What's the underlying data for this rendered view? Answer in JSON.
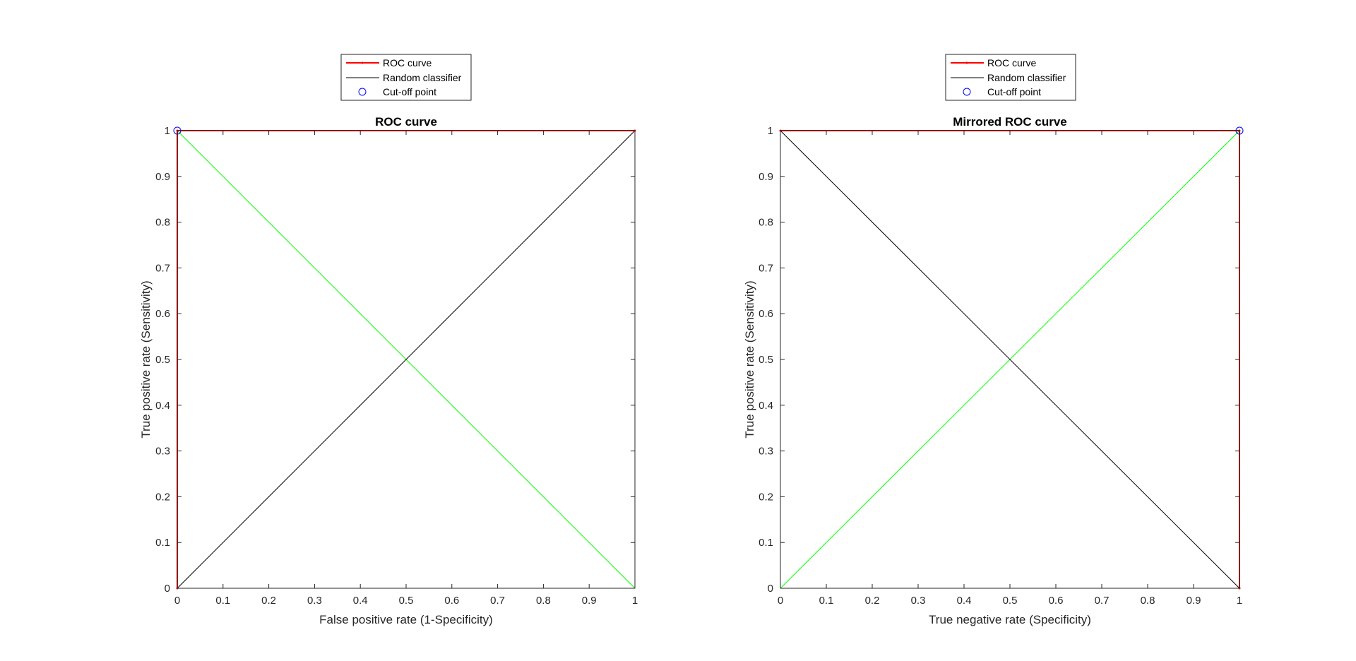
{
  "chart_data": [
    {
      "type": "line",
      "title": "ROC curve",
      "xlabel": "False positive rate (1-Specificity)",
      "ylabel": "True positive rate (Sensitivity)",
      "xlim": [
        0,
        1
      ],
      "ylim": [
        0,
        1
      ],
      "xticks": [
        "0",
        "0.1",
        "0.2",
        "0.3",
        "0.4",
        "0.5",
        "0.6",
        "0.7",
        "0.8",
        "0.9",
        "1"
      ],
      "yticks": [
        "0",
        "0.1",
        "0.2",
        "0.3",
        "0.4",
        "0.5",
        "0.6",
        "0.7",
        "0.8",
        "0.9",
        "1"
      ],
      "grid": false,
      "legend_position": "top-center-outside",
      "legend": [
        "ROC curve",
        "Random classifier",
        "Cut-off point"
      ],
      "series": [
        {
          "name": "ROC curve",
          "color": "#ff0000",
          "x": [
            0,
            0,
            1
          ],
          "y": [
            0,
            1,
            1
          ]
        },
        {
          "name": "Random classifier",
          "color": "#000000",
          "x": [
            0,
            1
          ],
          "y": [
            0,
            1
          ]
        },
        {
          "name": "",
          "color": "#00ff00",
          "x": [
            0,
            1
          ],
          "y": [
            1,
            0
          ]
        },
        {
          "name": "Cut-off point",
          "color": "#0000ff",
          "marker": "circle",
          "x": [
            0
          ],
          "y": [
            1
          ]
        }
      ]
    },
    {
      "type": "line",
      "title": "Mirrored ROC curve",
      "xlabel": "True negative rate (Specificity)",
      "ylabel": "True positive rate (Sensitivity)",
      "xlim": [
        0,
        1
      ],
      "ylim": [
        0,
        1
      ],
      "xticks": [
        "0",
        "0.1",
        "0.2",
        "0.3",
        "0.4",
        "0.5",
        "0.6",
        "0.7",
        "0.8",
        "0.9",
        "1"
      ],
      "yticks": [
        "0",
        "0.1",
        "0.2",
        "0.3",
        "0.4",
        "0.5",
        "0.6",
        "0.7",
        "0.8",
        "0.9",
        "1"
      ],
      "grid": false,
      "legend_position": "top-center-outside",
      "legend": [
        "ROC curve",
        "Random classifier",
        "Cut-off point"
      ],
      "series": [
        {
          "name": "ROC curve",
          "color": "#ff0000",
          "x": [
            1,
            1,
            0
          ],
          "y": [
            0,
            1,
            1
          ]
        },
        {
          "name": "",
          "color": "#00ff00",
          "x": [
            0,
            1
          ],
          "y": [
            0,
            1
          ]
        },
        {
          "name": "Random classifier",
          "color": "#000000",
          "x": [
            0,
            1
          ],
          "y": [
            1,
            0
          ]
        },
        {
          "name": "Cut-off point",
          "color": "#0000ff",
          "marker": "circle",
          "x": [
            1
          ],
          "y": [
            1
          ]
        }
      ]
    }
  ]
}
